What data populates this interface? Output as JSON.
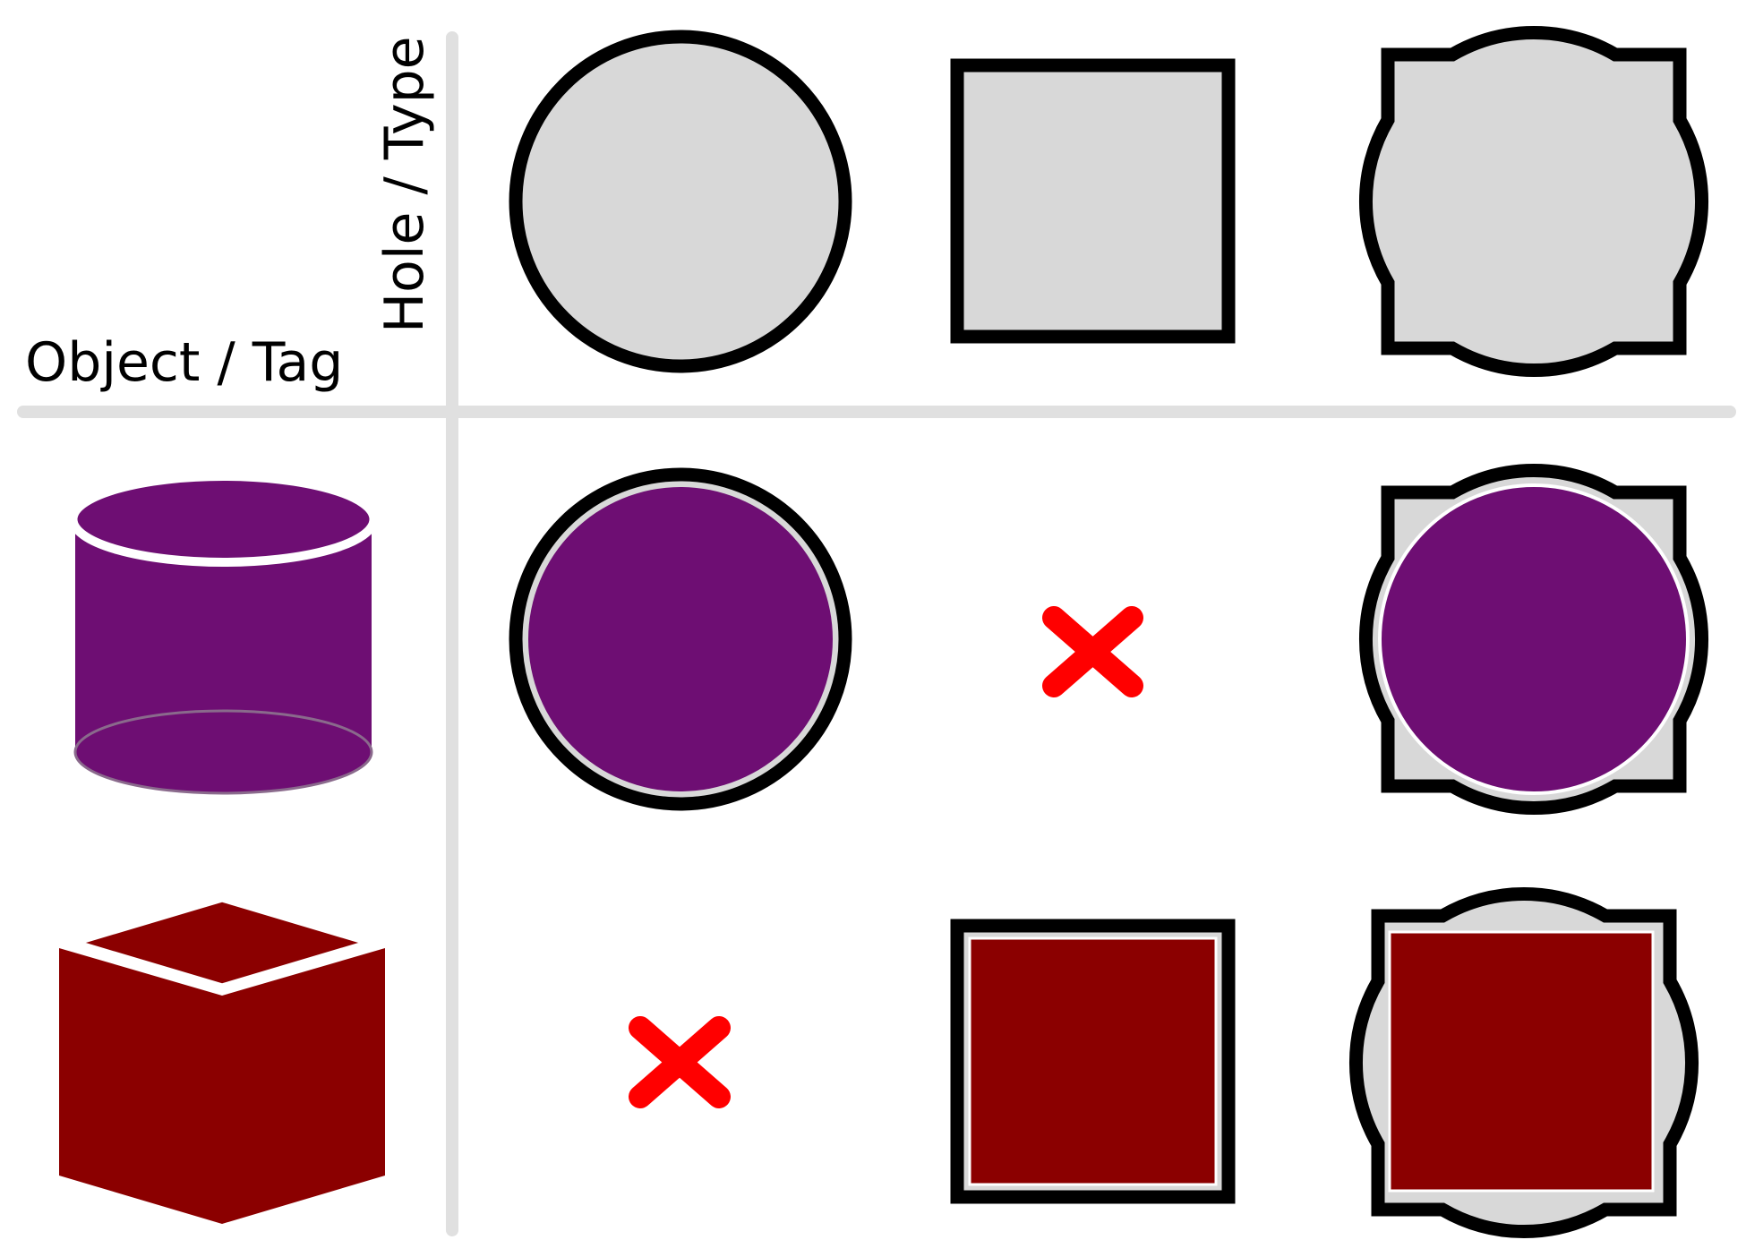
{
  "headers": {
    "row_axis": "Object / Tag",
    "column_axis": "Hole / Type"
  },
  "columns": [
    {
      "id": "round-hole",
      "shape": "circle"
    },
    {
      "id": "square-hole",
      "shape": "square"
    },
    {
      "id": "universal-hole",
      "shape": "circle-square-combo"
    }
  ],
  "rows": [
    {
      "id": "cylinder",
      "object": "cylinder",
      "color": "#6e0e73",
      "fits": [
        "yes",
        "no",
        "yes"
      ]
    },
    {
      "id": "cube",
      "object": "cube",
      "color": "#8b0000",
      "fits": [
        "no",
        "yes",
        "yes"
      ]
    }
  ],
  "colors": {
    "hole_fill": "#d8d8d8",
    "outline": "#000000",
    "grid_line": "#e0e0e0",
    "no_fit_mark": "#ff0000"
  }
}
